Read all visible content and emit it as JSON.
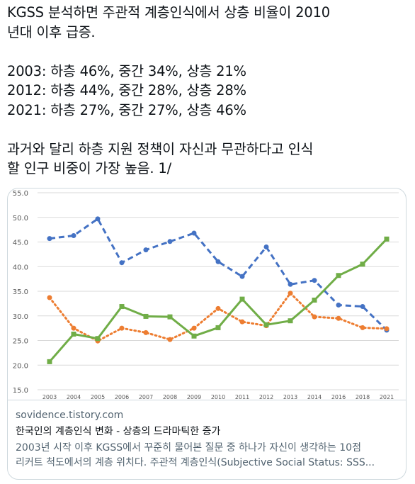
{
  "tweet": {
    "lines": [
      "KGSS 분석하면 주관적 계층인식에서 상층 비율이 2010",
      "년대 이후 급증.",
      "",
      "2003: 하층 46%, 중간 34%, 상층 21%",
      "2012: 하층 44%, 중간 28%, 상층 28%",
      "2021: 하층 27%, 중간 27%, 상층 46%",
      "",
      "과거와 달리 하층 지원 정책이 자신과 무관하다고 인식",
      "할 인구 비중이 가장 높음. 1/"
    ]
  },
  "card": {
    "domain": "sovidence.tistory.com",
    "title": "한국인의 계층인식 변화 - 상층의 드라마틱한 증가",
    "description_line1": "2003년 시작 이후 KGSS에서 꾸준히 물어본 질문 중 하나가 자신이 생각하는 10점",
    "description_line2": "리커트 척도에서의 계층 위치다. 주관적 계층인식(Subjective Social Status: SSS..."
  },
  "chart_data": {
    "type": "line",
    "title": "",
    "xlabel": "",
    "ylabel": "",
    "ylim": [
      15,
      55
    ],
    "yticks": [
      "15.0",
      "20.0",
      "25.0",
      "30.0",
      "35.0",
      "40.0",
      "45.0",
      "50.0",
      "55.0"
    ],
    "categories": [
      "2003",
      "2004",
      "2005",
      "2006",
      "2007",
      "2008",
      "2009",
      "2010",
      "2011",
      "2012",
      "2013",
      "2014",
      "2016",
      "2018",
      "2021"
    ],
    "grid": true,
    "legend": "none",
    "series": [
      {
        "color": "#4472c4",
        "style": "dashed",
        "marker": "circle",
        "values": [
          45.7,
          46.3,
          49.7,
          40.8,
          43.4,
          45.1,
          46.8,
          41.0,
          38.0,
          44.0,
          36.4,
          37.2,
          32.2,
          31.9,
          27.1
        ]
      },
      {
        "color": "#ed7d31",
        "style": "dotted",
        "marker": "circle",
        "values": [
          33.7,
          27.5,
          24.9,
          27.5,
          26.6,
          25.2,
          27.5,
          31.5,
          28.8,
          28.0,
          34.6,
          29.8,
          29.5,
          27.6,
          27.4
        ]
      },
      {
        "color": "#70ad47",
        "style": "solid",
        "marker": "square",
        "values": [
          20.7,
          26.3,
          25.4,
          31.9,
          29.9,
          29.8,
          25.9,
          27.6,
          33.4,
          28.2,
          29.0,
          33.2,
          38.2,
          40.5,
          45.6
        ]
      }
    ]
  }
}
